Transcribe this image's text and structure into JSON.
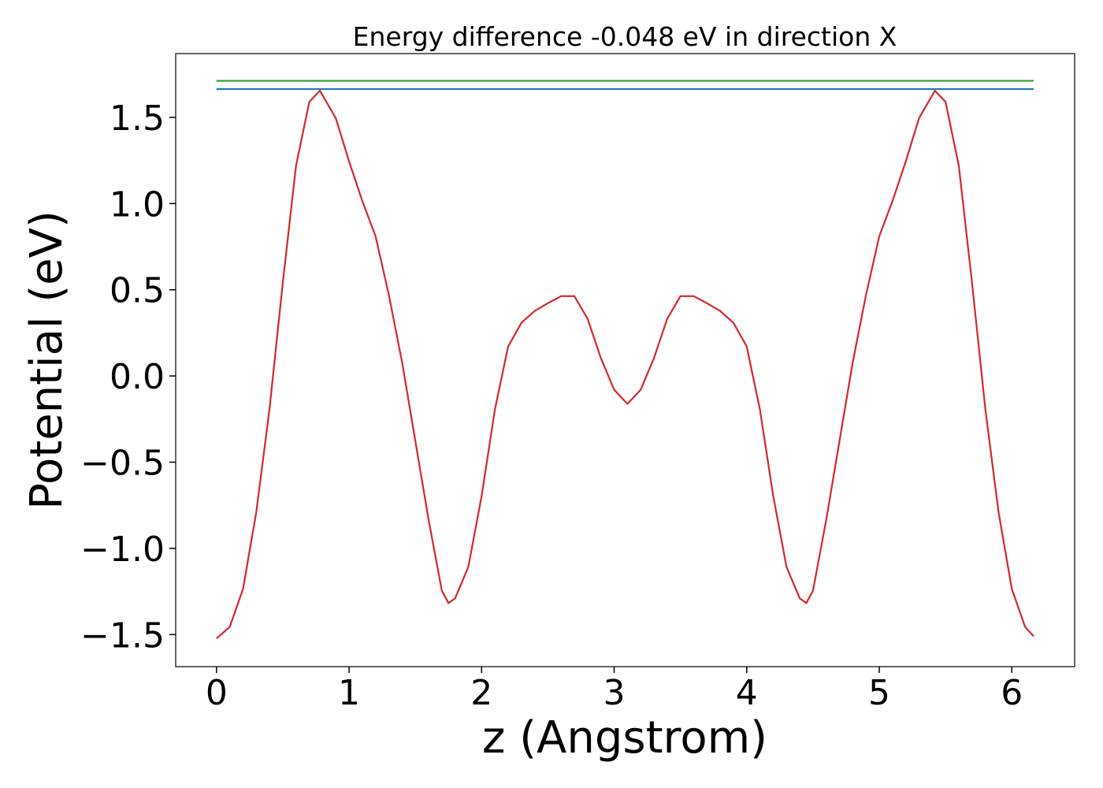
{
  "chart_data": {
    "type": "line",
    "title": "Energy difference -0.048 eV in direction X",
    "xlabel": "z (Angstrom)",
    "ylabel": "Potential (eV)",
    "xlim": [
      -0.308,
      6.474
    ],
    "ylim": [
      -1.686,
      1.87
    ],
    "xticks": [
      0,
      1,
      2,
      3,
      4,
      5,
      6
    ],
    "yticks": [
      {
        "value": -1.5,
        "label": "−1.5"
      },
      {
        "value": -1.0,
        "label": "−1.0"
      },
      {
        "value": -0.5,
        "label": "−0.5"
      },
      {
        "value": 0.0,
        "label": "0.0"
      },
      {
        "value": 0.5,
        "label": "0.5"
      },
      {
        "value": 1.0,
        "label": "1.0"
      },
      {
        "value": 1.5,
        "label": "1.5"
      }
    ],
    "series": [
      {
        "color": "#d62728",
        "x": [
          0,
          0.1,
          0.2,
          0.3,
          0.4,
          0.5,
          0.6,
          0.7,
          0.78,
          0.9,
          1.0,
          1.1,
          1.2,
          1.3,
          1.4,
          1.5,
          1.6,
          1.7,
          1.75,
          1.8,
          1.9,
          2.0,
          2.1,
          2.2,
          2.3,
          2.4,
          2.5,
          2.6,
          2.7,
          2.8,
          2.9,
          3.0,
          3.1,
          3.2,
          3.3,
          3.4,
          3.5,
          3.6,
          3.7,
          3.8,
          3.9,
          4.0,
          4.1,
          4.2,
          4.3,
          4.4,
          4.45,
          4.5,
          4.6,
          4.7,
          4.8,
          4.9,
          5.0,
          5.1,
          5.2,
          5.3,
          5.42,
          5.5,
          5.6,
          5.7,
          5.8,
          5.9,
          6.0,
          6.1,
          6.165
        ],
        "values": [
          -1.523,
          -1.455,
          -1.235,
          -0.79,
          -0.19,
          0.54,
          1.22,
          1.59,
          1.655,
          1.495,
          1.245,
          1.015,
          0.81,
          0.47,
          0.08,
          -0.377,
          -0.834,
          -1.245,
          -1.317,
          -1.29,
          -1.107,
          -0.696,
          -0.196,
          0.171,
          0.308,
          0.377,
          0.422,
          0.463,
          0.463,
          0.331,
          0.103,
          -0.08,
          -0.162,
          -0.08,
          0.103,
          0.331,
          0.463,
          0.463,
          0.422,
          0.377,
          0.308,
          0.171,
          -0.196,
          -0.696,
          -1.107,
          -1.29,
          -1.317,
          -1.245,
          -0.834,
          -0.377,
          0.08,
          0.47,
          0.81,
          1.015,
          1.245,
          1.495,
          1.655,
          1.59,
          1.22,
          0.54,
          -0.19,
          -0.79,
          -1.235,
          -1.455,
          -1.51
        ]
      },
      {
        "color": "#1f77b4",
        "x": [
          0,
          6.165
        ],
        "values": [
          1.664,
          1.664
        ]
      },
      {
        "color": "#2ca02c",
        "x": [
          0,
          6.165
        ],
        "values": [
          1.712,
          1.712
        ]
      }
    ]
  }
}
